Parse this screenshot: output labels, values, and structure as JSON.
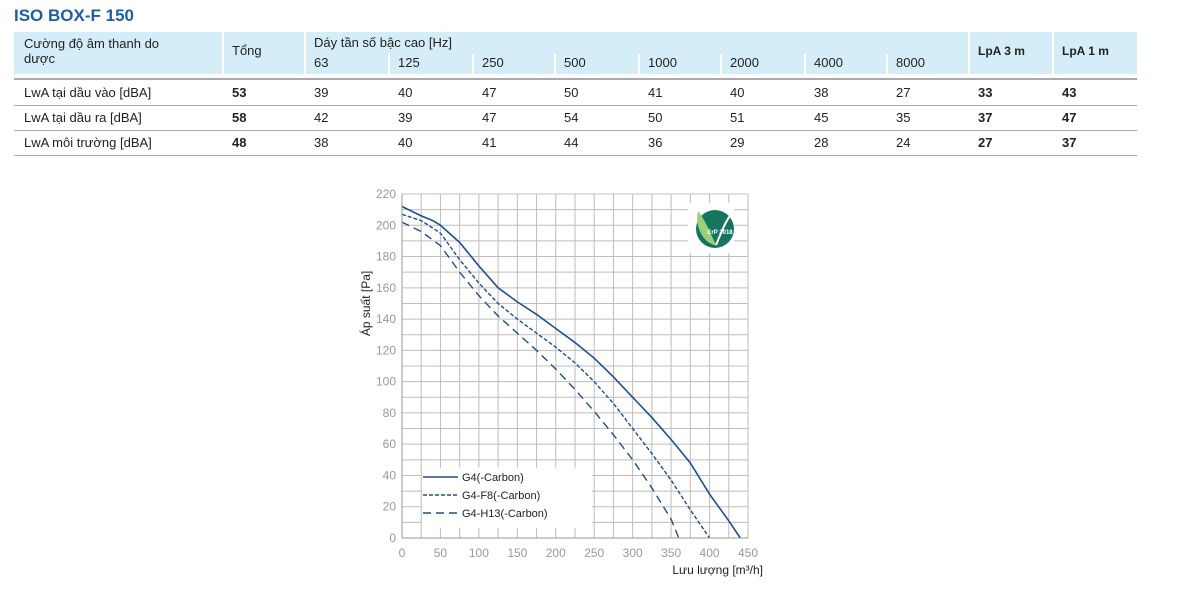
{
  "title": "ISO BOX-F 150",
  "table": {
    "row_header": "Cường độ âm thanh do dược",
    "total_header": "Tổng",
    "band_header": "Dáy tần số bậc cao  [Hz]",
    "bands": [
      "63",
      "125",
      "250",
      "500",
      "1000",
      "2000",
      "4000",
      "8000"
    ],
    "lpa3": "LpA 3 m",
    "lpa1": "LpA 1 m",
    "rows": [
      {
        "label": "LwA tại dầu vào  [dBA]",
        "total": "53",
        "values": [
          "39",
          "40",
          "47",
          "50",
          "41",
          "40",
          "38",
          "27"
        ],
        "lpa3": "33",
        "lpa1": "43"
      },
      {
        "label": "LwA tại dầu ra [dBA]",
        "total": "58",
        "values": [
          "42",
          "39",
          "47",
          "54",
          "50",
          "51",
          "45",
          "35"
        ],
        "lpa3": "37",
        "lpa1": "47"
      },
      {
        "label": "LwA môi trường [dBA]",
        "total": "48",
        "values": [
          "38",
          "40",
          "41",
          "44",
          "36",
          "29",
          "28",
          "24"
        ],
        "lpa3": "27",
        "lpa1": "37"
      }
    ]
  },
  "chart_data": {
    "type": "line",
    "xlabel": "Lưu lượng [m³/h]",
    "ylabel": "Áp suất [Pa]",
    "xlim": [
      0,
      450
    ],
    "ylim": [
      0,
      220
    ],
    "xticks": [
      "0",
      "50",
      "100",
      "150",
      "200",
      "250",
      "300",
      "350",
      "400",
      "450"
    ],
    "yticks": [
      "0",
      "20",
      "40",
      "60",
      "80",
      "100",
      "120",
      "140",
      "160",
      "180",
      "200",
      "220"
    ],
    "grid": true,
    "legend_position": "bottom-left",
    "badge": "ErP 2018",
    "line_color": "#1f4e8f",
    "series": [
      {
        "name": "G4(-Carbon)",
        "style": "solid",
        "points": [
          [
            0,
            212
          ],
          [
            25,
            206
          ],
          [
            40,
            203
          ],
          [
            50,
            200
          ],
          [
            75,
            189
          ],
          [
            100,
            174
          ],
          [
            125,
            160
          ],
          [
            150,
            151
          ],
          [
            175,
            143
          ],
          [
            200,
            134
          ],
          [
            225,
            125
          ],
          [
            250,
            115
          ],
          [
            275,
            103
          ],
          [
            300,
            90
          ],
          [
            325,
            77
          ],
          [
            350,
            63
          ],
          [
            375,
            48
          ],
          [
            400,
            28
          ],
          [
            425,
            11
          ],
          [
            440,
            0
          ]
        ]
      },
      {
        "name": "G4-F8(-Carbon)",
        "style": "dotted",
        "points": [
          [
            0,
            207
          ],
          [
            25,
            203
          ],
          [
            50,
            195
          ],
          [
            75,
            178
          ],
          [
            100,
            163
          ],
          [
            125,
            150
          ],
          [
            150,
            140
          ],
          [
            175,
            131
          ],
          [
            200,
            122
          ],
          [
            225,
            112
          ],
          [
            250,
            100
          ],
          [
            275,
            86
          ],
          [
            300,
            70
          ],
          [
            325,
            54
          ],
          [
            350,
            37
          ],
          [
            375,
            18
          ],
          [
            400,
            0
          ]
        ]
      },
      {
        "name": "G4-H13(-Carbon)",
        "style": "dashed",
        "points": [
          [
            0,
            202
          ],
          [
            25,
            196
          ],
          [
            50,
            187
          ],
          [
            75,
            170
          ],
          [
            100,
            155
          ],
          [
            125,
            142
          ],
          [
            150,
            131
          ],
          [
            175,
            120
          ],
          [
            200,
            108
          ],
          [
            225,
            95
          ],
          [
            250,
            81
          ],
          [
            275,
            66
          ],
          [
            300,
            50
          ],
          [
            325,
            32
          ],
          [
            350,
            12
          ],
          [
            360,
            0
          ]
        ]
      }
    ]
  }
}
